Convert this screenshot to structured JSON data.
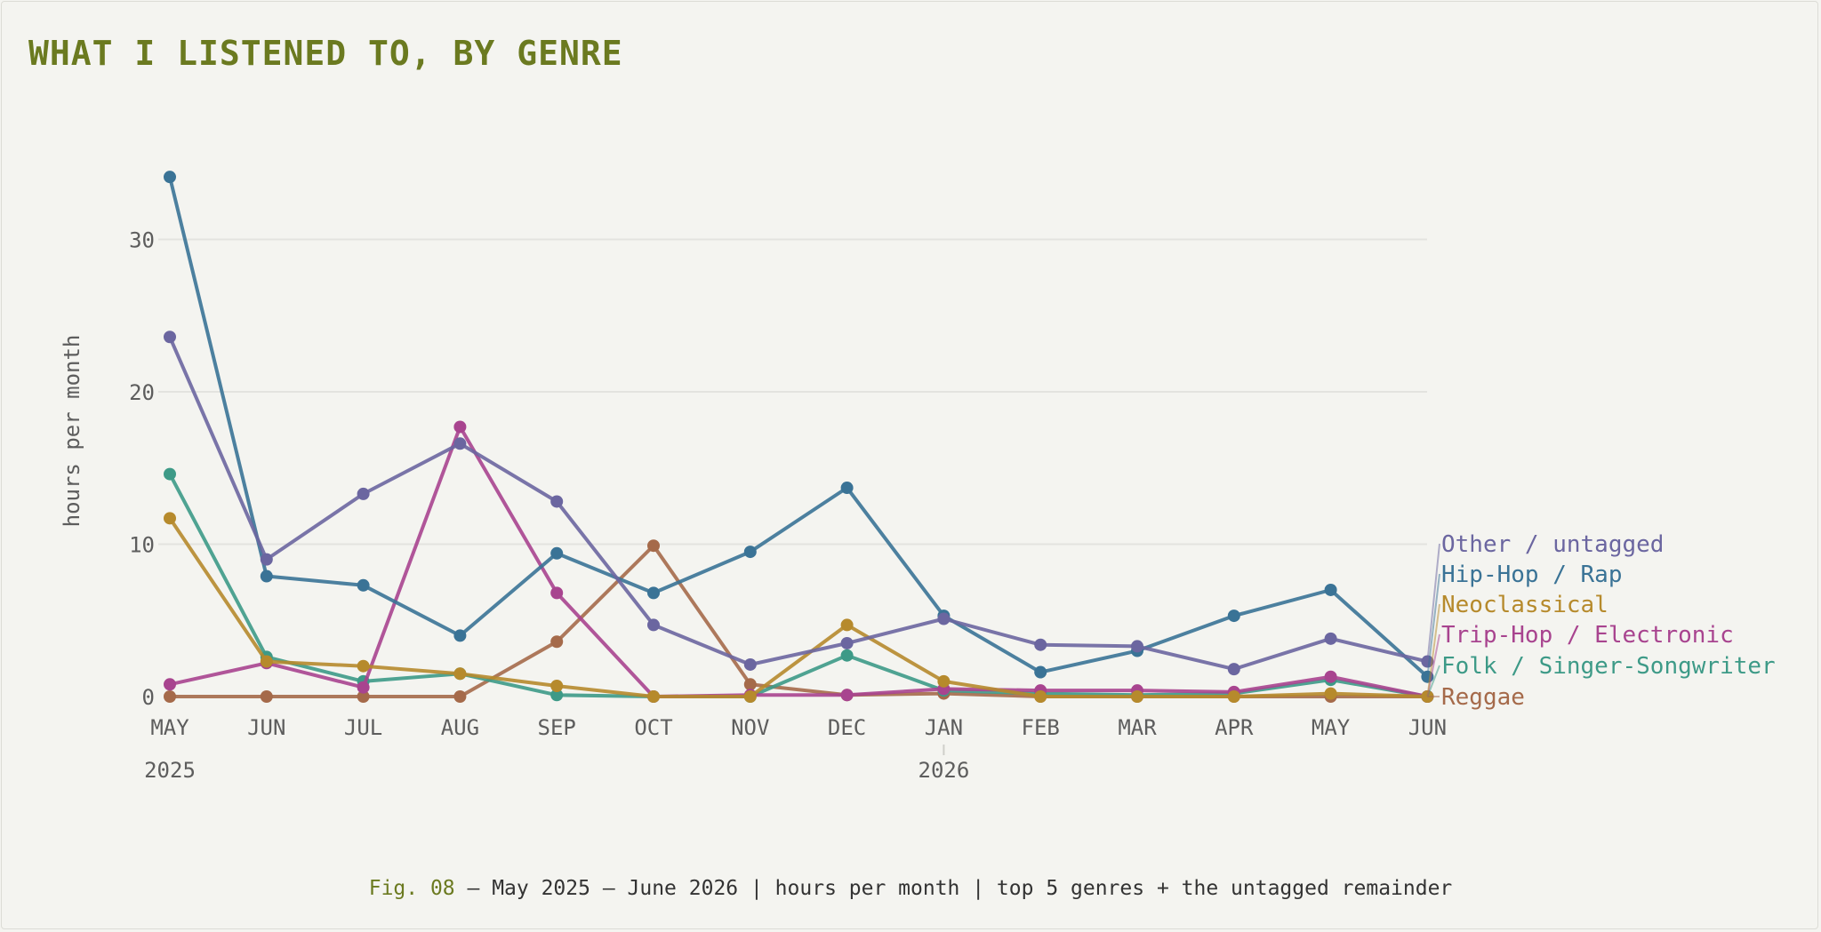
{
  "title": "WHAT I LISTENED TO, BY GENRE",
  "caption": {
    "fig": "Fig. 08",
    "text": " — May 2025 – June 2026 | hours per month | top 5 genres + the untagged remainder"
  },
  "colors": {
    "title": "#6b7a20",
    "background": "#f4f4f0",
    "grid": "#e3e3df"
  },
  "chart_data": {
    "type": "line",
    "ylabel": "hours per month",
    "ylim": [
      0,
      35
    ],
    "yticks": [
      0,
      10,
      20,
      30
    ],
    "grid": true,
    "legend": "right (end labels)",
    "categories": [
      "MAY",
      "JUN",
      "JUL",
      "AUG",
      "SEP",
      "OCT",
      "NOV",
      "DEC",
      "JAN",
      "FEB",
      "MAR",
      "APR",
      "MAY",
      "JUN"
    ],
    "year_labels": [
      {
        "index": 0,
        "label": "2025"
      },
      {
        "index": 8,
        "label": "2026"
      }
    ],
    "series": [
      {
        "name": "Reggae",
        "color": "#a56a4a",
        "values": [
          0,
          0,
          0,
          0,
          3.6,
          9.9,
          0.8,
          0.1,
          0.2,
          0,
          0,
          0,
          0,
          0
        ]
      },
      {
        "name": "Folk / Singer-Songwriter",
        "color": "#3d9a87",
        "values": [
          14.6,
          2.6,
          1.0,
          1.5,
          0.1,
          0,
          0,
          2.7,
          0.4,
          0.2,
          0.1,
          0.2,
          1.1,
          0
        ]
      },
      {
        "name": "Trip-Hop / Electronic",
        "color": "#a8448f",
        "values": [
          0.8,
          2.2,
          0.6,
          17.7,
          6.8,
          0,
          0.1,
          0.1,
          0.5,
          0.4,
          0.4,
          0.3,
          1.3,
          0
        ]
      },
      {
        "name": "Neoclassical",
        "color": "#b68a2c",
        "values": [
          11.7,
          2.3,
          2.0,
          1.5,
          0.7,
          0,
          0,
          4.7,
          1.0,
          0,
          0,
          0,
          0.2,
          0
        ]
      },
      {
        "name": "Hip-Hop / Rap",
        "color": "#3a7396",
        "values": [
          34.1,
          7.9,
          7.3,
          4.0,
          9.4,
          6.8,
          9.5,
          13.7,
          5.3,
          1.6,
          3.0,
          5.3,
          7.0,
          1.3
        ]
      },
      {
        "name": "Other / untagged",
        "color": "#6b66a0",
        "values": [
          23.6,
          9.0,
          13.3,
          16.6,
          12.8,
          4.7,
          2.1,
          3.5,
          5.1,
          3.4,
          3.3,
          1.8,
          3.8,
          2.3
        ]
      }
    ]
  }
}
